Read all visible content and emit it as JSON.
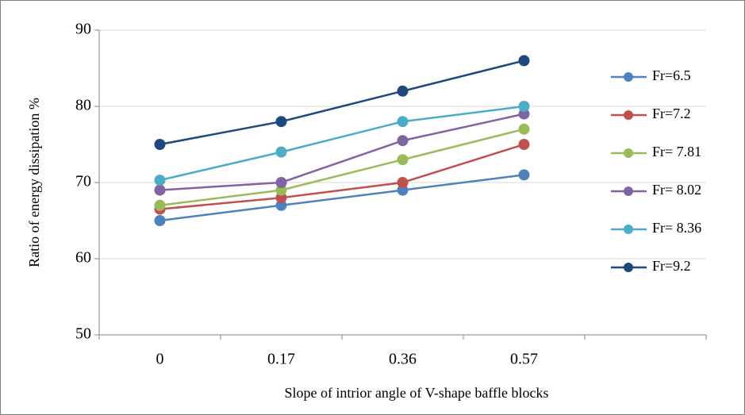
{
  "chart_data": {
    "type": "line",
    "xlabel": "Slope of intrior angle of V-shape baffle blocks",
    "ylabel": "Ratio of energy dissipation %",
    "categories": [
      "0",
      "0.17",
      "0.36",
      "0.57",
      null
    ],
    "series": [
      {
        "name": "Fr=6.5",
        "color": "#4f81bd",
        "values": [
          65,
          67,
          69,
          71,
          null
        ]
      },
      {
        "name": "Fr=7.2",
        "color": "#c0504d",
        "values": [
          66.5,
          68,
          70,
          75,
          null
        ]
      },
      {
        "name": "Fr= 7.81",
        "color": "#9bbb59",
        "values": [
          67,
          69,
          73,
          77,
          null
        ]
      },
      {
        "name": "Fr= 8.02",
        "color": "#8064a2",
        "values": [
          69,
          70,
          75.5,
          79,
          null
        ]
      },
      {
        "name": "Fr= 8.36",
        "color": "#4bacc6",
        "values": [
          70.3,
          74,
          78,
          80,
          null
        ]
      },
      {
        "name": "Fr=9.2",
        "color": "#1f497d",
        "values": [
          75,
          78,
          82,
          86,
          null
        ]
      }
    ],
    "ylim": [
      50,
      90
    ],
    "yticks": [
      50,
      60,
      70,
      80,
      90
    ],
    "grid": true,
    "legend": "right"
  }
}
